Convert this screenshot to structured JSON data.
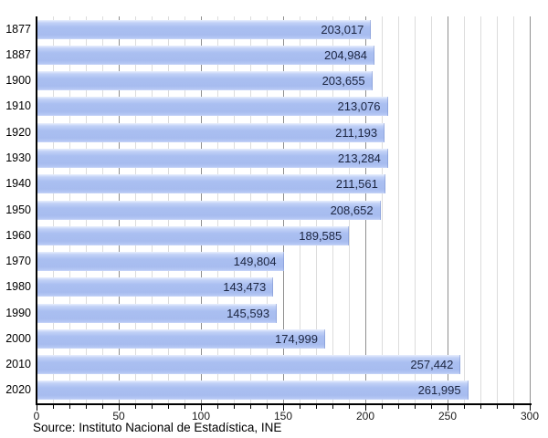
{
  "chart_data": {
    "type": "bar",
    "orientation": "horizontal",
    "title": "",
    "categories": [
      "1877",
      "1887",
      "1900",
      "1910",
      "1920",
      "1930",
      "1940",
      "1950",
      "1960",
      "1970",
      "1980",
      "1990",
      "2000",
      "2010",
      "2020"
    ],
    "values": [
      203017,
      204984,
      203655,
      213076,
      211193,
      213284,
      211561,
      208652,
      189585,
      149804,
      143473,
      145593,
      174999,
      257442,
      261995
    ],
    "value_labels": [
      "203,017",
      "204,984",
      "203,655",
      "213,076",
      "211,193",
      "213,284",
      "211,561",
      "208,652",
      "189,585",
      "149,804",
      "143,473",
      "145,593",
      "174,999",
      "257,442",
      "261,995"
    ],
    "x_axis": {
      "min": 0,
      "max": 300,
      "minor_tick_step": 10,
      "major_tick_step": 50,
      "tick_labels": [
        "0",
        "50",
        "100",
        "150",
        "200",
        "250",
        "300"
      ]
    },
    "grid": true,
    "legend": false
  },
  "source_text": "Source: Instituto Nacional de Estadística, INE",
  "colors": {
    "background": "#ffffff",
    "bar_main": "#a9beef",
    "bar_highlight": "#e9effd",
    "axis": "#000000",
    "grid_minor": "#dcdcdc",
    "grid_major": "#8f8f8f",
    "value_label": "#1c2540"
  }
}
